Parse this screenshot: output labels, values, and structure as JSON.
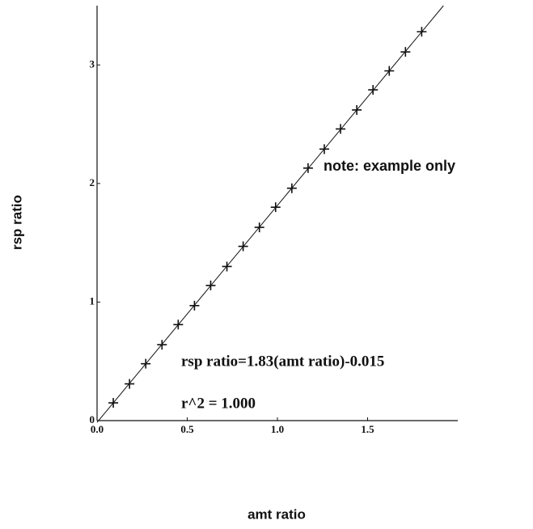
{
  "chart_data": {
    "type": "scatter",
    "x_label": "amt ratio",
    "y_label": "rsp ratio",
    "annotations": [
      "note:  example only",
      "rsp ratio=1.83(amt ratio)-0.015",
      "r^2 = 1.000"
    ],
    "x": [
      0.09,
      0.18,
      0.27,
      0.36,
      0.45,
      0.54,
      0.63,
      0.72,
      0.81,
      0.9,
      0.99,
      1.08,
      1.17,
      1.26,
      1.35,
      1.44,
      1.53,
      1.62,
      1.71,
      1.8
    ],
    "values": [
      0.15,
      0.31,
      0.48,
      0.64,
      0.81,
      0.97,
      1.14,
      1.3,
      1.47,
      1.63,
      1.8,
      1.96,
      2.13,
      2.29,
      2.46,
      2.62,
      2.79,
      2.95,
      3.11,
      3.28
    ],
    "fit": {
      "slope": 1.83,
      "intercept": -0.015
    },
    "color": "#111111",
    "xlim": [
      0,
      2
    ],
    "ylim": [
      0,
      3.5
    ],
    "xticks": [
      {
        "value": 0,
        "label": "0.0"
      },
      0.5,
      {
        "value": 1,
        "label": "1.0"
      },
      1.5
    ],
    "yticks": [
      0,
      1,
      2,
      3
    ],
    "grid": false
  }
}
